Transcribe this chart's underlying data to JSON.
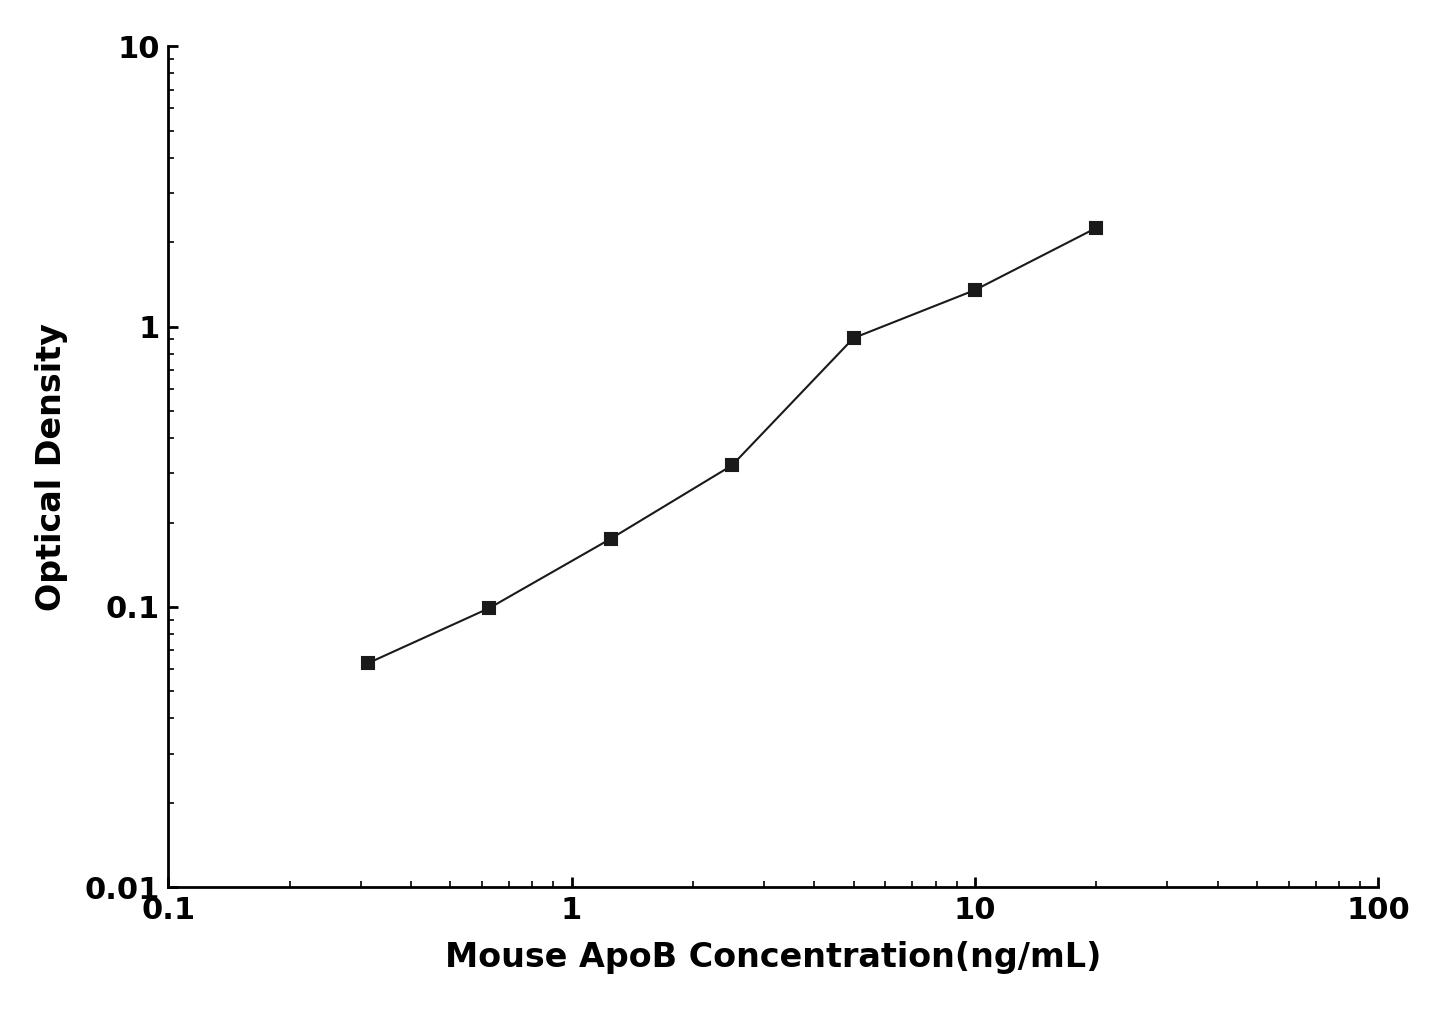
{
  "x": [
    0.313,
    0.625,
    1.25,
    2.5,
    5.0,
    10.0,
    20.0
  ],
  "y": [
    0.063,
    0.099,
    0.175,
    0.32,
    0.91,
    1.35,
    2.25
  ],
  "xlabel": "Mouse ApoB Concentration(ng/mL)",
  "ylabel": "Optical Density",
  "xlim_log": [
    0.1,
    100
  ],
  "ylim_log": [
    0.01,
    10
  ],
  "line_color": "#1a1a1a",
  "marker": "s",
  "marker_color": "#1a1a1a",
  "marker_size": 9,
  "linewidth": 1.5,
  "xlabel_fontsize": 24,
  "ylabel_fontsize": 24,
  "tick_labelsize": 22,
  "background_color": "#ffffff"
}
